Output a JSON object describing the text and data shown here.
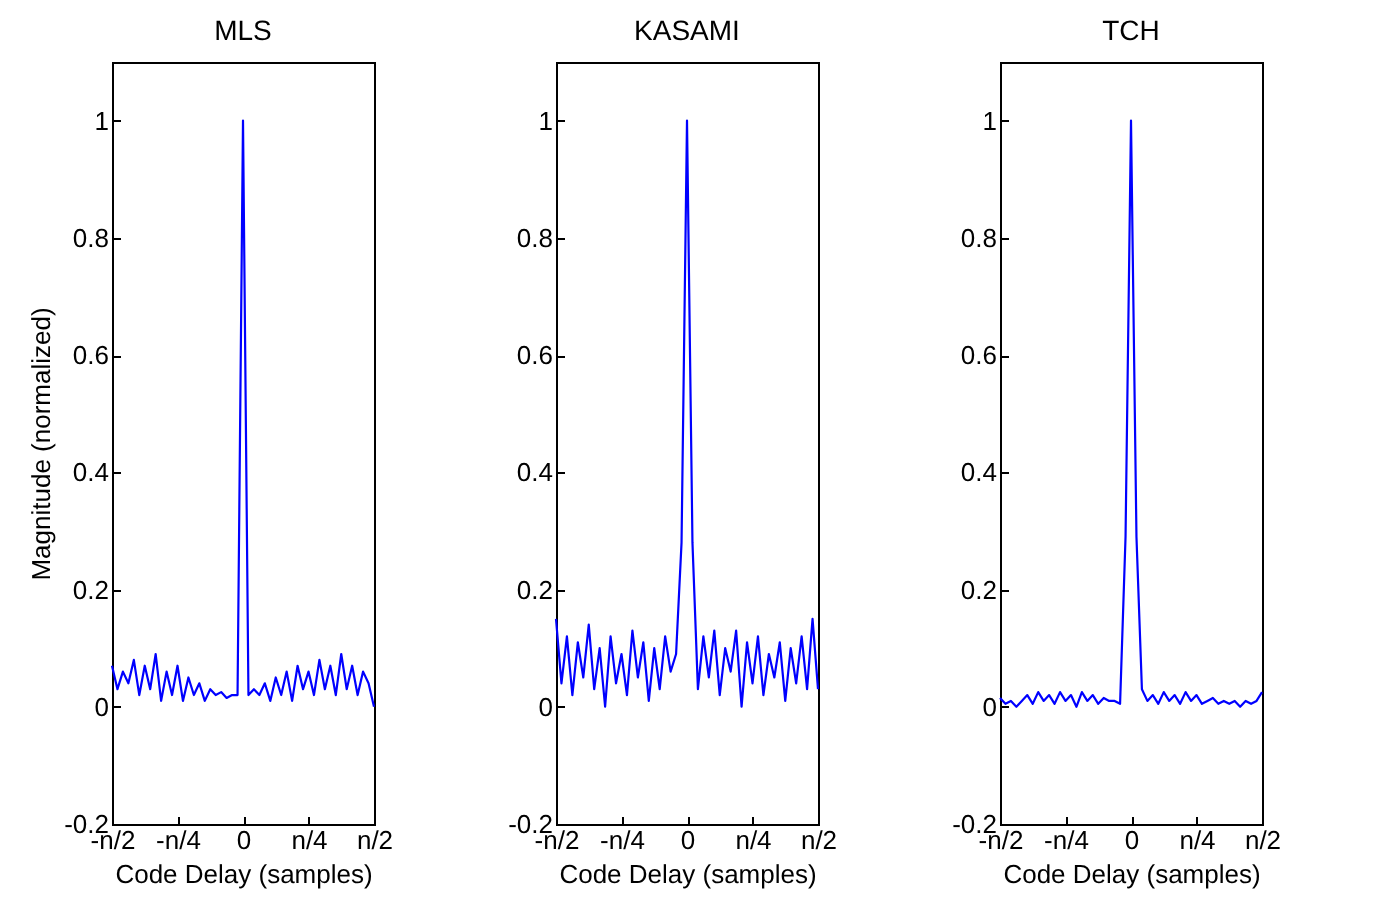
{
  "chart_data": [
    {
      "type": "line",
      "title": "MLS",
      "xlabel": "Code Delay (samples)",
      "ylabel": "Magnitude (normalized)",
      "categories": [
        "-n/2",
        null,
        null,
        null,
        null,
        null,
        null,
        null,
        null,
        null,
        null,
        null,
        "-n/4",
        null,
        null,
        null,
        null,
        null,
        null,
        null,
        null,
        null,
        null,
        null,
        "0",
        null,
        null,
        null,
        null,
        null,
        null,
        null,
        null,
        null,
        null,
        null,
        "n/4",
        null,
        null,
        null,
        null,
        null,
        null,
        null,
        null,
        null,
        null,
        null,
        "n/2"
      ],
      "series": [
        {
          "color": "#0000ff",
          "values": [
            0.07,
            0.03,
            0.06,
            0.04,
            0.08,
            0.02,
            0.07,
            0.03,
            0.09,
            0.01,
            0.06,
            0.02,
            0.07,
            0.01,
            0.05,
            0.02,
            0.04,
            0.01,
            0.03,
            0.02,
            0.025,
            0.015,
            0.02,
            0.02,
            1,
            0.02,
            0.03,
            0.02,
            0.04,
            0.01,
            0.05,
            0.02,
            0.06,
            0.01,
            0.07,
            0.03,
            0.06,
            0.02,
            0.08,
            0.03,
            0.07,
            0.02,
            0.09,
            0.03,
            0.07,
            0.02,
            0.06,
            0.04,
            0.0
          ]
        }
      ],
      "ylim": [
        -0.2,
        1.1
      ],
      "yticks": [
        -0.2,
        0,
        0.2,
        0.4,
        0.6,
        0.8,
        1
      ]
    },
    {
      "type": "line",
      "title": "KASAMI",
      "xlabel": "Code Delay (samples)",
      "categories": [
        "-n/2",
        null,
        null,
        null,
        null,
        null,
        null,
        null,
        null,
        null,
        null,
        null,
        "-n/4",
        null,
        null,
        null,
        null,
        null,
        null,
        null,
        null,
        null,
        null,
        null,
        "0",
        null,
        null,
        null,
        null,
        null,
        null,
        null,
        null,
        null,
        null,
        null,
        "n/4",
        null,
        null,
        null,
        null,
        null,
        null,
        null,
        null,
        null,
        null,
        null,
        "n/2"
      ],
      "series": [
        {
          "color": "#0000ff",
          "values": [
            0.15,
            0.04,
            0.12,
            0.02,
            0.11,
            0.05,
            0.14,
            0.03,
            0.1,
            0.0,
            0.12,
            0.04,
            0.09,
            0.02,
            0.13,
            0.05,
            0.11,
            0.01,
            0.1,
            0.03,
            0.12,
            0.06,
            0.09,
            0.28,
            1,
            0.28,
            0.03,
            0.12,
            0.05,
            0.13,
            0.02,
            0.1,
            0.06,
            0.13,
            0.0,
            0.11,
            0.04,
            0.12,
            0.02,
            0.09,
            0.05,
            0.11,
            0.01,
            0.1,
            0.04,
            0.12,
            0.03,
            0.15,
            0.03
          ]
        }
      ],
      "ylim": [
        -0.2,
        1.1
      ],
      "yticks": [
        -0.2,
        0,
        0.2,
        0.4,
        0.6,
        0.8,
        1
      ]
    },
    {
      "type": "line",
      "title": "TCH",
      "xlabel": "Code Delay (samples)",
      "categories": [
        "-n/2",
        null,
        null,
        null,
        null,
        null,
        null,
        null,
        null,
        null,
        null,
        null,
        "-n/4",
        null,
        null,
        null,
        null,
        null,
        null,
        null,
        null,
        null,
        null,
        null,
        "0",
        null,
        null,
        null,
        null,
        null,
        null,
        null,
        null,
        null,
        null,
        null,
        "n/4",
        null,
        null,
        null,
        null,
        null,
        null,
        null,
        null,
        null,
        null,
        null,
        "n/2"
      ],
      "series": [
        {
          "color": "#0000ff",
          "values": [
            0.015,
            0.005,
            0.01,
            0.0,
            0.01,
            0.02,
            0.005,
            0.025,
            0.01,
            0.02,
            0.005,
            0.025,
            0.01,
            0.02,
            0.0,
            0.025,
            0.01,
            0.02,
            0.005,
            0.015,
            0.01,
            0.01,
            0.005,
            0.29,
            1,
            0.29,
            0.03,
            0.01,
            0.02,
            0.005,
            0.025,
            0.01,
            0.02,
            0.005,
            0.025,
            0.01,
            0.02,
            0.005,
            0.01,
            0.015,
            0.005,
            0.01,
            0.005,
            0.01,
            0.0,
            0.01,
            0.005,
            0.01,
            0.025
          ]
        }
      ],
      "ylim": [
        -0.2,
        1.1
      ],
      "yticks": [
        -0.2,
        0,
        0.2,
        0.4,
        0.6,
        0.8,
        1
      ]
    }
  ]
}
